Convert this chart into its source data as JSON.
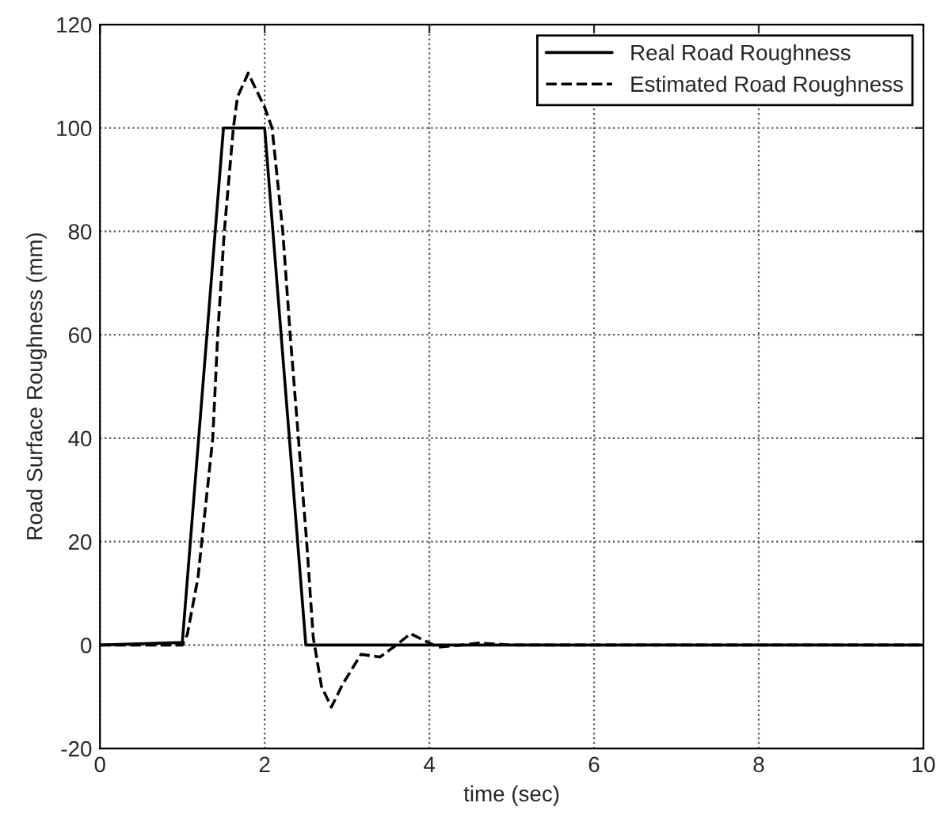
{
  "chart_data": {
    "type": "line",
    "xlabel": "time (sec)",
    "ylabel": "Road Surface Roughness (mm)",
    "xlim": [
      0,
      10
    ],
    "ylim": [
      -20,
      120
    ],
    "xticks": [
      0,
      2,
      4,
      6,
      8,
      10
    ],
    "yticks": [
      -20,
      0,
      20,
      40,
      60,
      80,
      100,
      120
    ],
    "grid": true,
    "legend": "top right",
    "series": [
      {
        "name": "Real Road Roughness",
        "color": "#000000",
        "line_style": "solid",
        "x": [
          0,
          1.0,
          1.5,
          2.0,
          2.5,
          10
        ],
        "values": [
          0,
          0.5,
          100,
          100,
          0,
          0
        ]
      },
      {
        "name": "Estimated Road Roughness",
        "color": "#000000",
        "line_style": "dashed",
        "x": [
          0,
          1.0,
          1.06,
          1.19,
          1.37,
          1.43,
          1.51,
          1.62,
          1.67,
          1.8,
          2.0,
          2.09,
          2.22,
          2.31,
          2.41,
          2.51,
          2.59,
          2.69,
          2.81,
          2.95,
          3.17,
          3.4,
          3.6,
          3.77,
          4.1,
          4.4,
          4.6,
          5.0,
          6.0,
          10
        ],
        "values": [
          0,
          0,
          2,
          13,
          40,
          60,
          80,
          100,
          106,
          110.6,
          104,
          100,
          80,
          60,
          40,
          20,
          1.5,
          -8,
          -12,
          -7.5,
          -1.8,
          -2.3,
          0,
          2.2,
          -0.4,
          0,
          0.4,
          0,
          0,
          0
        ]
      }
    ]
  }
}
